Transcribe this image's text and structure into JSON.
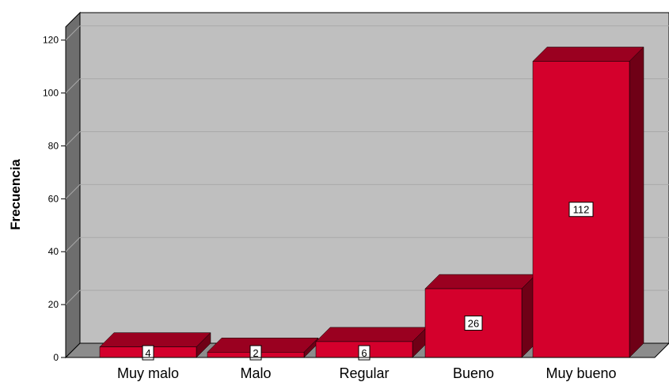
{
  "chart_data": {
    "type": "bar",
    "style": "3d",
    "categories": [
      "Muy malo",
      "Malo",
      "Regular",
      "Bueno",
      "Muy bueno"
    ],
    "values": [
      4,
      2,
      6,
      26,
      112
    ],
    "data_labels": [
      "4",
      "2",
      "6",
      "26",
      "112"
    ],
    "title": "",
    "xlabel": "",
    "ylabel": "Frecuencia",
    "ylim": [
      0,
      125
    ],
    "yticks": [
      "0",
      "20",
      "40",
      "60",
      "80",
      "100",
      "120"
    ],
    "grid": true,
    "legend": "none",
    "colors": {
      "bar_front": "#d4002c",
      "bar_top": "#9a0020",
      "bar_side": "#6f0016",
      "plot_back": "#bfbfbf",
      "plot_floor": "#8c8c8c",
      "plot_side": "#6e6e6e",
      "gridline": "#a9a9a9"
    }
  }
}
